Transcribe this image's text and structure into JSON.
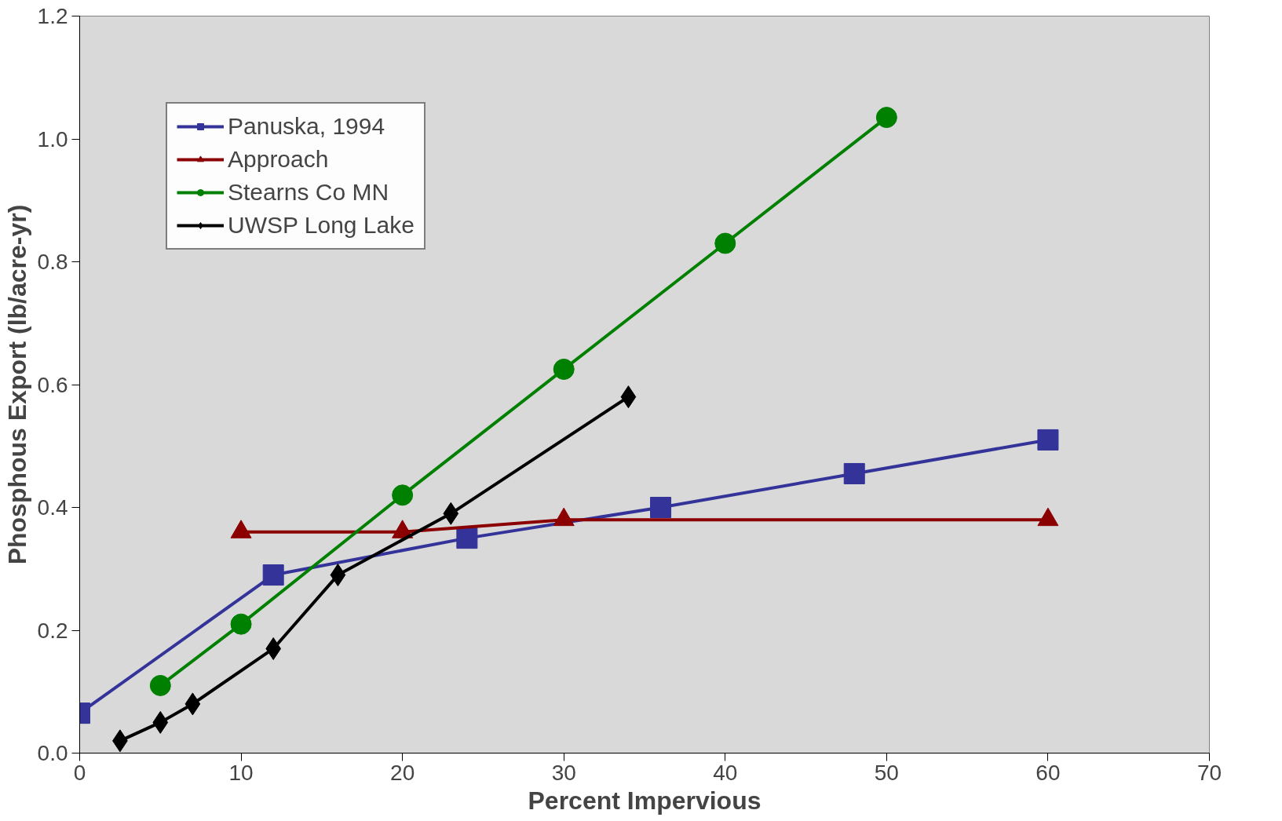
{
  "chart_data": {
    "type": "line",
    "xlabel": "Percent Impervious",
    "ylabel": "Phosphous Export (lb/acre-yr)",
    "xlim": [
      0,
      70
    ],
    "xticks": [
      0,
      10,
      20,
      30,
      40,
      50,
      60,
      70
    ],
    "ylim": [
      0,
      1.2
    ],
    "yticks": [
      {
        "value": 0,
        "label": "0.0"
      },
      {
        "value": 0.2,
        "label": "0.2"
      },
      {
        "value": 0.4,
        "label": "0.4"
      },
      {
        "value": 0.6,
        "label": "0.6"
      },
      {
        "value": 0.8,
        "label": "0.8"
      },
      {
        "value": 1.0,
        "label": "1.0"
      },
      {
        "value": 1.2,
        "label": "1.2"
      }
    ],
    "grid": false,
    "legend": "top left",
    "line_style": "solid",
    "series": [
      {
        "name": "Panuska, 1994",
        "color": "#333399",
        "marker": "square",
        "x": [
          0,
          12,
          24,
          36,
          48,
          60
        ],
        "values": [
          0.065,
          0.29,
          0.35,
          0.4,
          0.455,
          0.51
        ]
      },
      {
        "name": "Approach",
        "color": "#8b0000",
        "marker": "triangle",
        "x": [
          10,
          20,
          30,
          60
        ],
        "values": [
          0.36,
          0.36,
          0.38,
          0.38
        ]
      },
      {
        "name": "Stearns Co MN",
        "color": "#008000",
        "marker": "circle",
        "x": [
          5,
          10,
          20,
          30,
          40,
          50
        ],
        "values": [
          0.11,
          0.21,
          0.42,
          0.625,
          0.83,
          1.035
        ]
      },
      {
        "name": "UWSP Long Lake",
        "color": "#000000",
        "marker": "diamond",
        "x": [
          2.5,
          5,
          7,
          12,
          16,
          23,
          34
        ],
        "values": [
          0.02,
          0.05,
          0.08,
          0.17,
          0.29,
          0.39,
          0.58
        ]
      }
    ]
  }
}
